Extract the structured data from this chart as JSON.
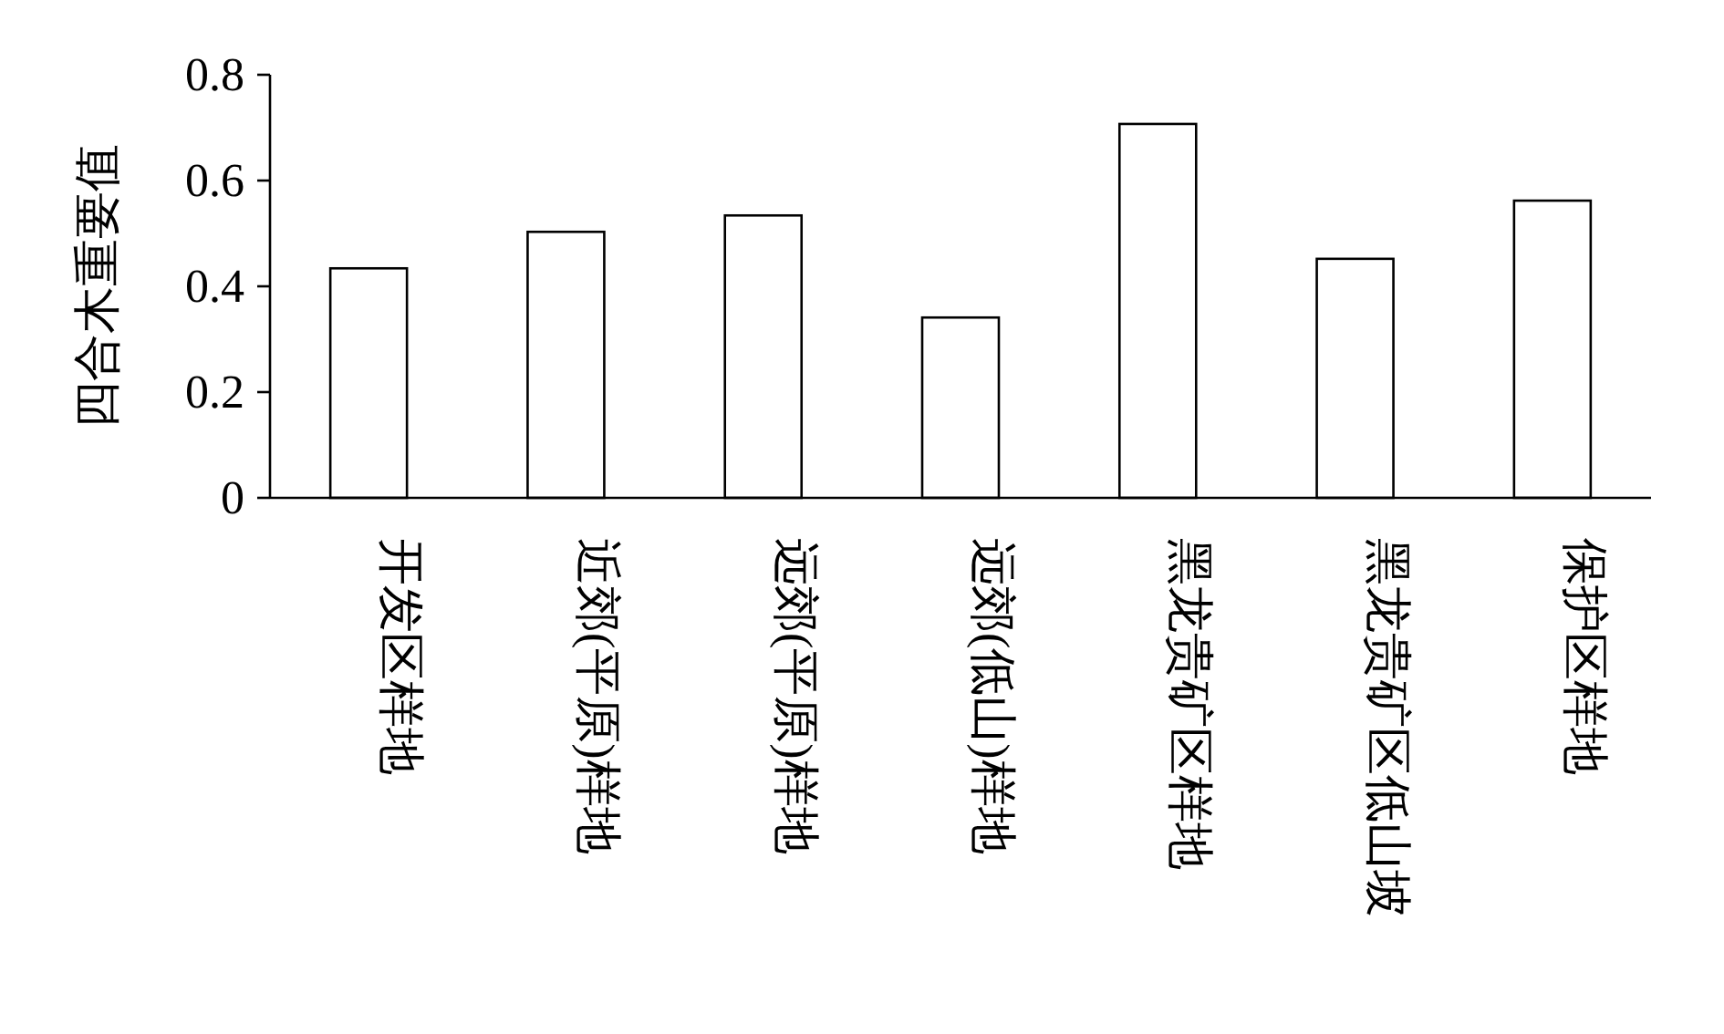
{
  "chart_data": {
    "type": "bar",
    "ylabel": "四合木重要值",
    "categories": [
      "开发区样地",
      "近郊(平原)样地",
      "远郊(平原)样地",
      "远郊(低山)样地",
      "黑龙贵矿区样地",
      "黑龙贵矿区低山坡",
      "保护区样地"
    ],
    "values": [
      0.434,
      0.503,
      0.534,
      0.341,
      0.707,
      0.452,
      0.562
    ],
    "color": "#ffffff",
    "ylim": [
      0,
      0.8
    ],
    "yticks": [
      0,
      0.2,
      0.4,
      0.6,
      0.8
    ]
  }
}
